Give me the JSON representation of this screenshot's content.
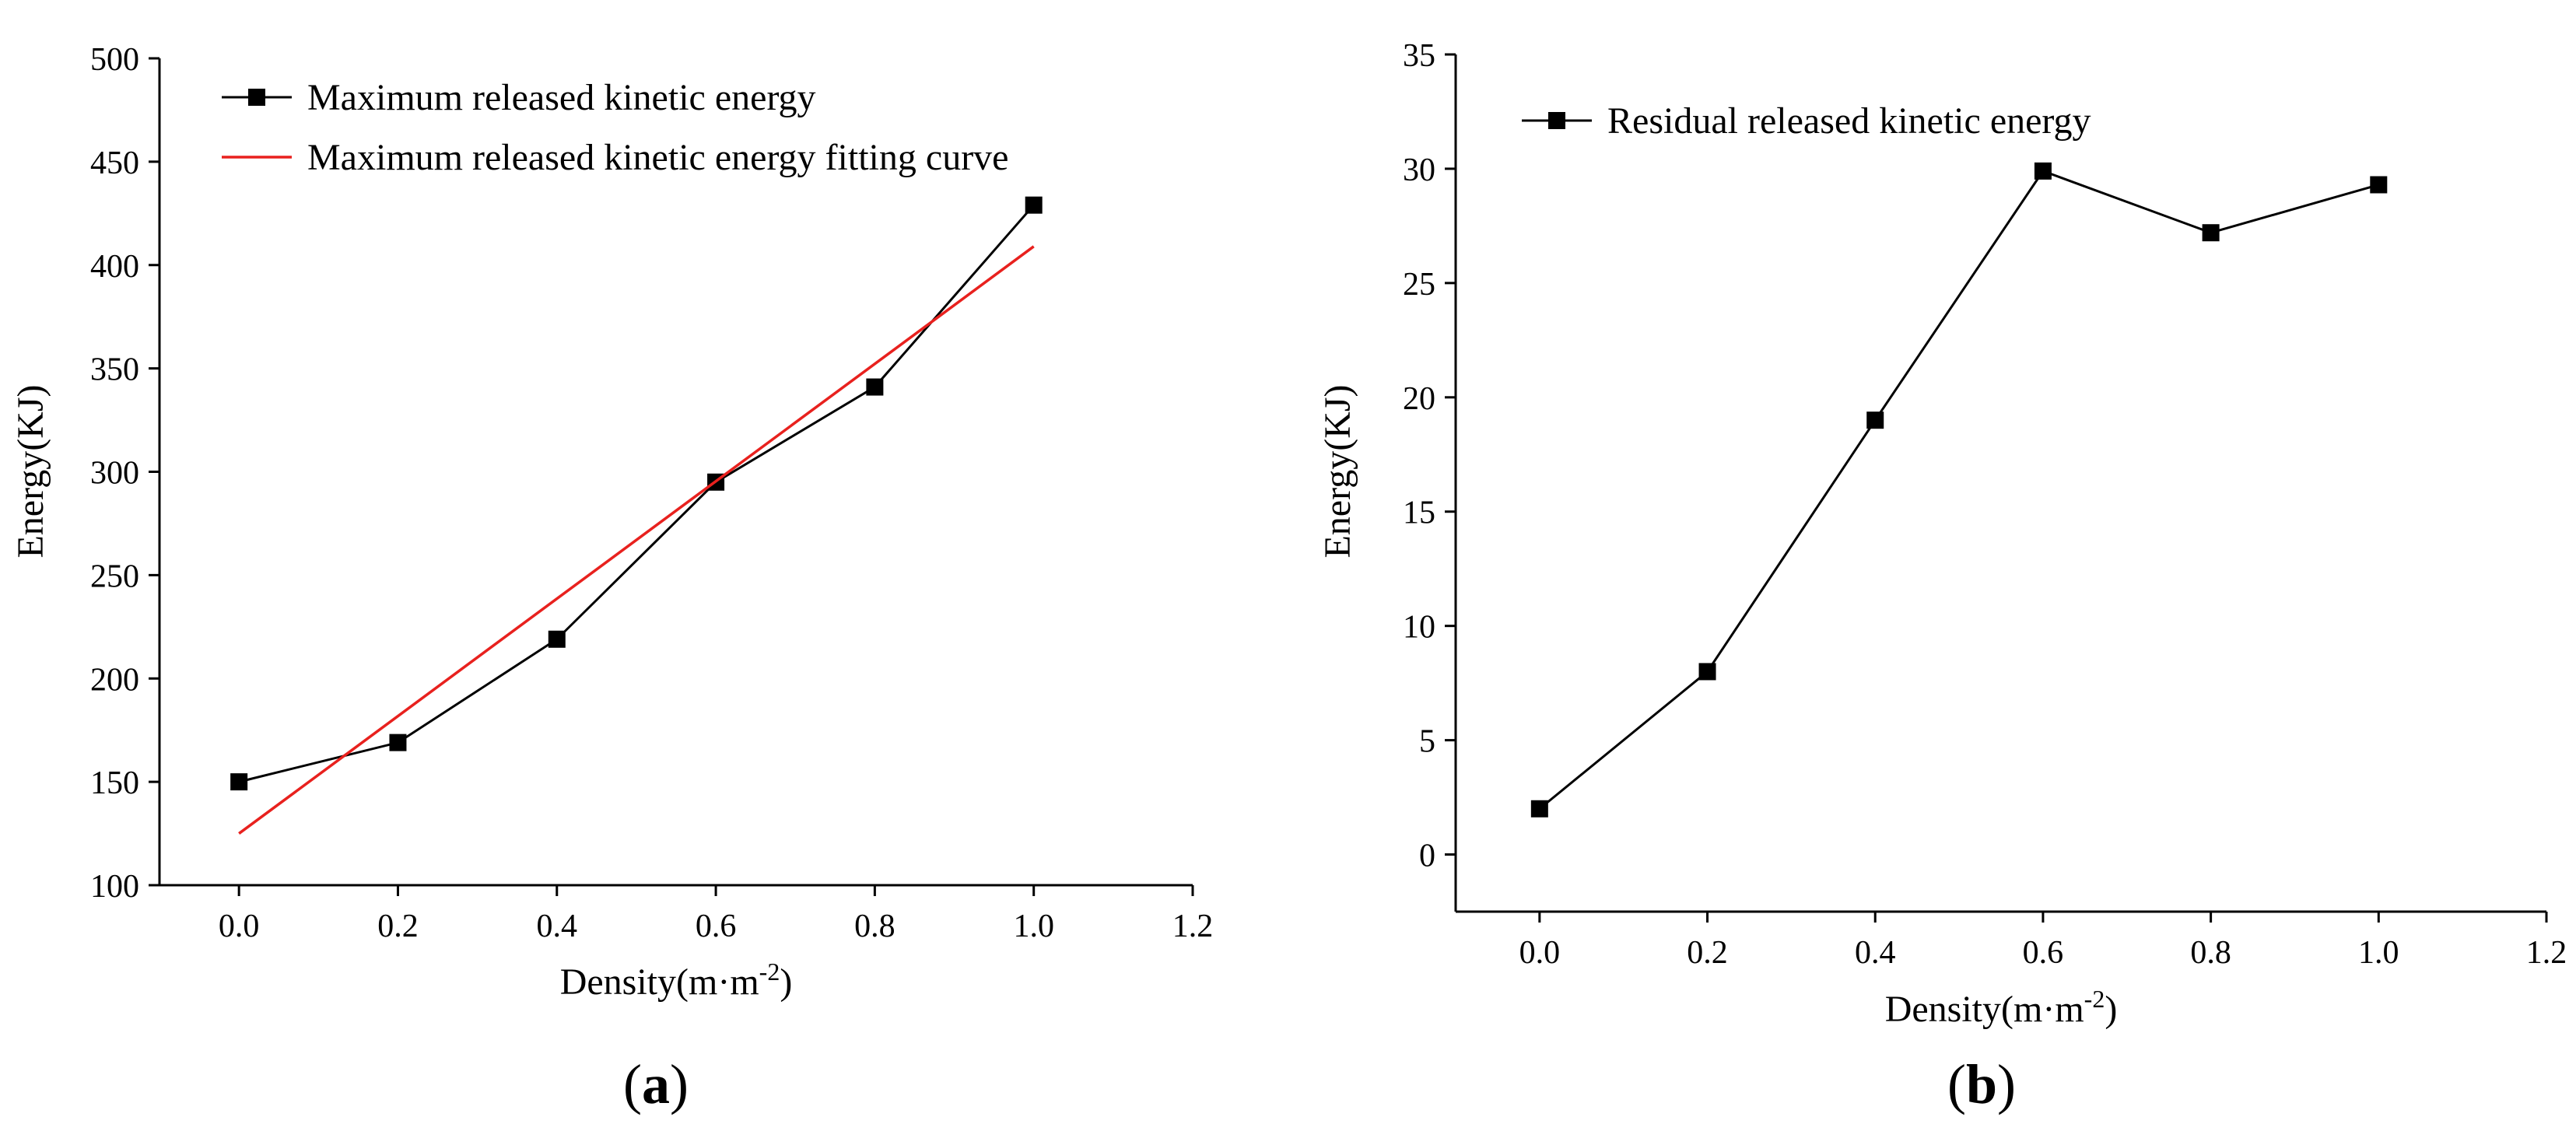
{
  "colors": {
    "series": "#000000",
    "fit": "#e8211e",
    "axis": "#000000"
  },
  "chart_data": [
    {
      "panel": "(a)",
      "panel_letter": "a",
      "type": "line",
      "xlabel_base": "Density(m·m",
      "xlabel_sup": "-2",
      "xlabel_close": ")",
      "ylabel": "Energy(KJ)",
      "xlim": [
        -0.1,
        1.2
      ],
      "ylim": [
        100,
        500
      ],
      "xticks": [
        "0.0",
        "0.2",
        "0.4",
        "0.6",
        "0.8",
        "1.0",
        "1.2"
      ],
      "xtick_values": [
        0.0,
        0.2,
        0.4,
        0.6,
        0.8,
        1.0,
        1.2
      ],
      "yticks": [
        "100",
        "150",
        "200",
        "250",
        "300",
        "350",
        "400",
        "450",
        "500"
      ],
      "ytick_values": [
        100,
        150,
        200,
        250,
        300,
        350,
        400,
        450,
        500
      ],
      "series": [
        {
          "name": "Maximum released kinetic energy",
          "kind": "line-marker",
          "x": [
            0.0,
            0.2,
            0.4,
            0.6,
            0.8,
            1.0
          ],
          "values": [
            150,
            169,
            219,
            295,
            341,
            429
          ]
        },
        {
          "name": "Maximum released kinetic energy fitting curve",
          "kind": "fit",
          "x": [
            0.0,
            1.0
          ],
          "values": [
            125,
            409
          ]
        }
      ],
      "legend_position": "top-left"
    },
    {
      "panel": "(b)",
      "panel_letter": "b",
      "type": "line",
      "xlabel_base": "Density(m·m",
      "xlabel_sup": "-2",
      "xlabel_close": ")",
      "ylabel": "Energy(KJ)",
      "xlim": [
        -0.1,
        1.2
      ],
      "ylim": [
        -2.5,
        35
      ],
      "xticks": [
        "0.0",
        "0.2",
        "0.4",
        "0.6",
        "0.8",
        "1.0",
        "1.2"
      ],
      "xtick_values": [
        0.0,
        0.2,
        0.4,
        0.6,
        0.8,
        1.0,
        1.2
      ],
      "yticks": [
        "0",
        "5",
        "10",
        "15",
        "20",
        "25",
        "30",
        "35"
      ],
      "ytick_values": [
        0,
        5,
        10,
        15,
        20,
        25,
        30,
        35
      ],
      "series": [
        {
          "name": "Residual released kinetic energy",
          "kind": "line-marker",
          "x": [
            0.0,
            0.2,
            0.4,
            0.6,
            0.8,
            1.0
          ],
          "values": [
            2,
            8,
            19,
            29.9,
            27.2,
            29.3
          ]
        }
      ],
      "legend_position": "top-left"
    }
  ]
}
